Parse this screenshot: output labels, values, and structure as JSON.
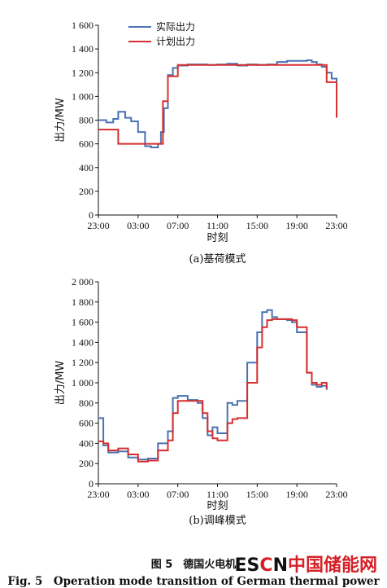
{
  "chart_data": [
    {
      "type": "line",
      "subtitle": "(a)基荷模式",
      "xlabel": "时刻",
      "ylabel": "出力/MW",
      "yticks": [
        "0",
        "200",
        "400",
        "600",
        "800",
        "1 000",
        "1 200",
        "1 400",
        "1 600"
      ],
      "ylim": [
        0,
        1600
      ],
      "xticks": [
        "23:00",
        "03:00",
        "07:00",
        "11:00",
        "15:00",
        "19:00",
        "23:00"
      ],
      "xlim": [
        0,
        24
      ],
      "legend": "top-left",
      "series": [
        {
          "name": "实际出力",
          "color": "#4a72b0",
          "x": [
            0,
            0.8,
            1.5,
            2,
            2.7,
            3.3,
            4,
            4.7,
            5.3,
            6,
            6.3,
            6.6,
            7,
            7.5,
            8,
            9,
            10,
            11,
            12,
            13,
            14,
            15,
            16,
            17,
            18,
            19,
            20,
            21,
            21.5,
            22,
            22.5,
            23,
            23.5,
            24
          ],
          "y": [
            800,
            780,
            810,
            870,
            820,
            790,
            700,
            580,
            570,
            600,
            700,
            900,
            1180,
            1240,
            1260,
            1270,
            1270,
            1265,
            1270,
            1275,
            1260,
            1270,
            1265,
            1270,
            1290,
            1300,
            1300,
            1305,
            1290,
            1270,
            1250,
            1200,
            1150,
            1090
          ]
        },
        {
          "name": "计划出力",
          "color": "#d62f2f",
          "x": [
            0,
            1,
            2,
            3,
            4,
            5,
            6,
            6.5,
            7,
            8,
            10,
            12,
            14,
            16,
            18,
            20,
            22,
            23,
            24
          ],
          "y": [
            720,
            720,
            600,
            600,
            600,
            600,
            600,
            960,
            1170,
            1265,
            1265,
            1265,
            1265,
            1265,
            1265,
            1265,
            1265,
            1120,
            820
          ]
        }
      ]
    },
    {
      "type": "line",
      "subtitle": "(b)调峰模式",
      "xlabel": "时刻",
      "ylabel": "出力/MW",
      "yticks": [
        "0",
        "200",
        "400",
        "600",
        "800",
        "1 000",
        "1 200",
        "1 400",
        "1 600",
        "1 800",
        "2 000"
      ],
      "ylim": [
        0,
        2000
      ],
      "xticks": [
        "23:00",
        "03:00",
        "07:00",
        "11:00",
        "15:00",
        "19:00",
        "23:00"
      ],
      "xlim": [
        0,
        24
      ],
      "series": [
        {
          "name": "实际出力",
          "color": "#4a72b0",
          "x": [
            0,
            0.5,
            1,
            2,
            3,
            4,
            5,
            6,
            7,
            7.5,
            8,
            9,
            10,
            10.5,
            11,
            11.5,
            12,
            13,
            13.5,
            14,
            15,
            16,
            16.5,
            17,
            17.5,
            18,
            19,
            19.5,
            20,
            21,
            21.5,
            22,
            22.5,
            23
          ],
          "y": [
            650,
            380,
            310,
            320,
            260,
            240,
            250,
            400,
            520,
            850,
            870,
            830,
            800,
            650,
            480,
            560,
            500,
            800,
            780,
            820,
            1200,
            1500,
            1700,
            1720,
            1650,
            1630,
            1620,
            1600,
            1500,
            1100,
            980,
            960,
            970,
            930
          ]
        },
        {
          "name": "计划出力",
          "color": "#d62f2f",
          "x": [
            0,
            0.5,
            1,
            2,
            3,
            4,
            5,
            6,
            7,
            7.5,
            8,
            9,
            10,
            10.5,
            11,
            11.5,
            12,
            13,
            13.5,
            14,
            15,
            16,
            16.5,
            17,
            17.5,
            18,
            19,
            19.5,
            20,
            21,
            21.5,
            22,
            22.5,
            23
          ],
          "y": [
            420,
            400,
            330,
            350,
            290,
            220,
            230,
            330,
            430,
            700,
            820,
            820,
            820,
            700,
            520,
            450,
            430,
            600,
            640,
            650,
            1000,
            1350,
            1550,
            1620,
            1630,
            1630,
            1630,
            1620,
            1550,
            1100,
            1000,
            980,
            1000,
            940
          ]
        }
      ]
    }
  ],
  "caption": {
    "cn": "图 5　德国火电机",
    "en": "Fig. 5　Operation mode transition of German thermal power"
  },
  "watermark": {
    "e": "ES",
    "c": "C",
    "n": "N",
    "rest": "中国储能网"
  }
}
